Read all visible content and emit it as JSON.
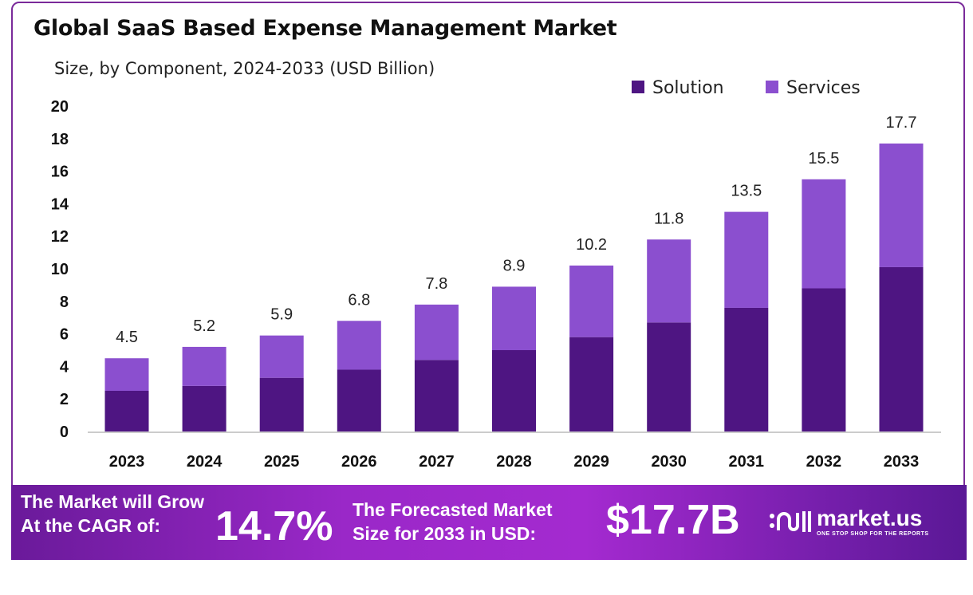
{
  "chart_data": {
    "type": "bar",
    "stacked": true,
    "title": "Global SaaS Based Expense Management Market",
    "subtitle": "Size, by Component, 2024-2033 (USD Billion)",
    "categories": [
      "2023",
      "2024",
      "2025",
      "2026",
      "2027",
      "2028",
      "2029",
      "2030",
      "2031",
      "2032",
      "2033"
    ],
    "series": [
      {
        "name": "Solution",
        "color": "#4e1582",
        "values": [
          2.5,
          2.8,
          3.3,
          3.8,
          4.4,
          5.0,
          5.8,
          6.7,
          7.6,
          8.8,
          10.1
        ]
      },
      {
        "name": "Services",
        "color": "#8b4fcf",
        "values": [
          2.0,
          2.4,
          2.6,
          3.0,
          3.4,
          3.9,
          4.4,
          5.1,
          5.9,
          6.7,
          7.6
        ]
      }
    ],
    "totals": [
      "4.5",
      "5.2",
      "5.9",
      "6.8",
      "7.8",
      "8.9",
      "10.2",
      "11.8",
      "13.5",
      "15.5",
      "17.7"
    ],
    "ylim": [
      0,
      20
    ],
    "yticks": [
      0,
      2,
      4,
      6,
      8,
      10,
      12,
      14,
      16,
      18,
      20
    ],
    "grid": false,
    "legend": "top-right"
  },
  "banner": {
    "cagr_label_1": "The Market will Grow",
    "cagr_label_2": "At the CAGR of:",
    "cagr_value": "14.7%",
    "forecast_label_1": "The Forecasted Market",
    "forecast_label_2": "Size for 2033 in USD:",
    "forecast_value": "$17.7B",
    "logo_name": "market.us",
    "logo_tagline": "ONE STOP SHOP FOR THE REPORTS"
  }
}
